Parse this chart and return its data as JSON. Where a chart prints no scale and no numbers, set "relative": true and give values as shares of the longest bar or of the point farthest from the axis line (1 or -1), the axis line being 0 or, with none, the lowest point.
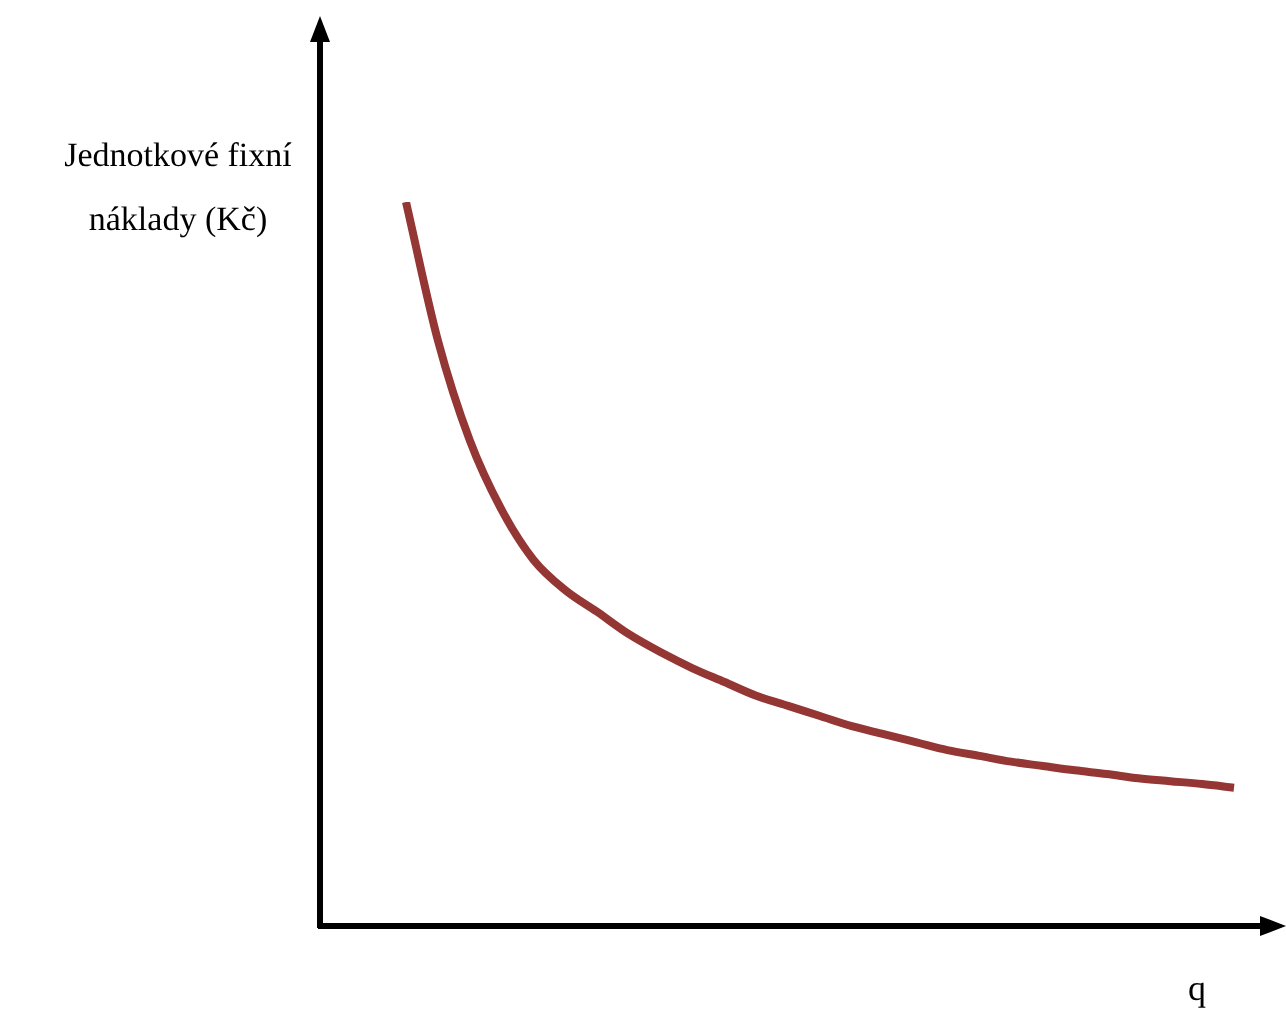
{
  "chart_data": {
    "type": "line",
    "ylabel": "Jednotkové fixní náklady (Kč)",
    "xlabel": "q",
    "relative": true,
    "categories": [
      null,
      null,
      null,
      null,
      null,
      null,
      null,
      null,
      null,
      null,
      null,
      null,
      null,
      null,
      null,
      null,
      null,
      null,
      null,
      null,
      null,
      null,
      null,
      null,
      null,
      null,
      null
    ],
    "values": [
      1,
      0.809,
      0.671,
      0.575,
      0.506,
      0.464,
      0.434,
      0.403,
      0.378,
      0.356,
      0.337,
      0.318,
      0.304,
      0.29,
      0.276,
      0.265,
      0.254,
      0.243,
      0.235,
      0.227,
      0.221,
      0.215,
      0.21,
      0.204,
      0.2,
      0.196,
      0.191
    ],
    "color": "#943634"
  }
}
